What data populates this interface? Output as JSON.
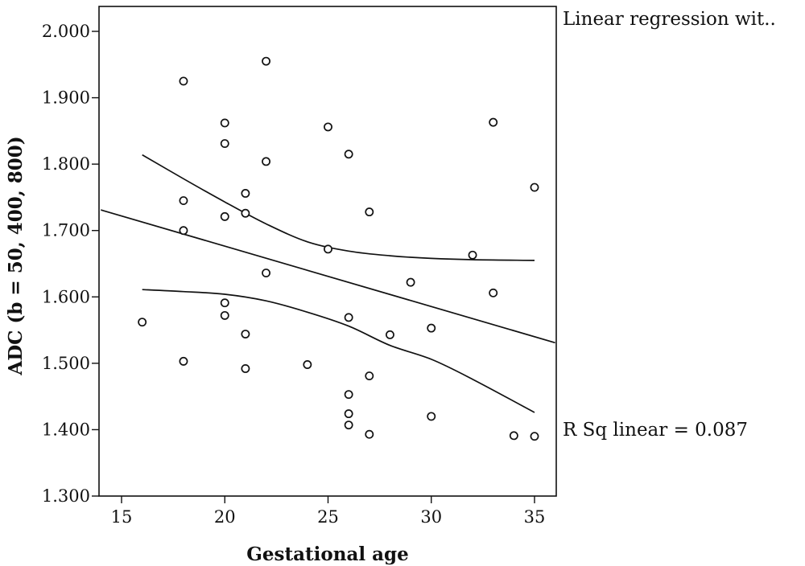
{
  "chart_data": {
    "type": "scatter",
    "xlabel": "Gestational age",
    "ylabel": "ADC (b = 50, 400, 800)",
    "xlim": [
      14,
      36
    ],
    "ylim": [
      1.3,
      2.0
    ],
    "xticks": [
      15,
      20,
      25,
      30,
      35
    ],
    "xtick_labels": [
      "15",
      "20",
      "25",
      "30",
      "35"
    ],
    "yticks": [
      1.3,
      1.4,
      1.5,
      1.6,
      1.7,
      1.8,
      1.9,
      2.0
    ],
    "ytick_labels": [
      "1.300",
      "1.400",
      "1.500",
      "1.600",
      "1.700",
      "1.800",
      "1.900",
      "2.000"
    ],
    "grid": false,
    "annotations": {
      "fit_legend": "Linear regression wit..",
      "r_squared": "R Sq linear = 0.087"
    },
    "series": [
      {
        "kind": "points",
        "x": [
          16,
          18,
          18,
          18,
          18,
          20,
          20,
          20,
          20,
          20,
          21,
          21,
          21,
          21,
          22,
          22,
          22,
          24,
          25,
          25,
          26,
          26,
          26,
          26,
          26,
          27,
          27,
          27,
          28,
          29,
          30,
          30,
          32,
          33,
          33,
          34,
          35,
          35
        ],
        "y": [
          1.562,
          1.925,
          1.745,
          1.7,
          1.503,
          1.862,
          1.831,
          1.721,
          1.591,
          1.572,
          1.756,
          1.726,
          1.544,
          1.492,
          1.955,
          1.804,
          1.636,
          1.498,
          1.856,
          1.672,
          1.815,
          1.569,
          1.453,
          1.424,
          1.407,
          1.728,
          1.481,
          1.393,
          1.543,
          1.622,
          1.553,
          1.42,
          1.663,
          1.863,
          1.606,
          1.391,
          1.765,
          1.39
        ]
      },
      {
        "kind": "fit",
        "x": [
          14,
          36
        ],
        "y": [
          1.731,
          1.531
        ]
      },
      {
        "kind": "ci_upper",
        "x": [
          16,
          18,
          20,
          22,
          24,
          26,
          28,
          30,
          32,
          35
        ],
        "y": [
          1.814,
          1.778,
          1.743,
          1.71,
          1.683,
          1.669,
          1.662,
          1.658,
          1.656,
          1.655
        ]
      },
      {
        "kind": "ci_lower",
        "x": [
          16,
          18,
          20,
          22,
          24,
          26,
          28,
          30,
          32,
          35
        ],
        "y": [
          1.611,
          1.608,
          1.604,
          1.594,
          1.577,
          1.556,
          1.527,
          1.506,
          1.476,
          1.426
        ]
      }
    ]
  }
}
